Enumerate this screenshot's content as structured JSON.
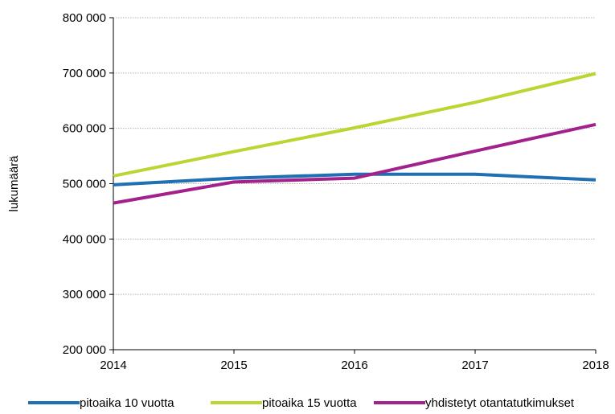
{
  "chart_data": {
    "type": "line",
    "title": "",
    "xlabel": "",
    "ylabel": "lukumäärä",
    "x": [
      "2014",
      "2015",
      "2016",
      "2017",
      "2018"
    ],
    "ylim": [
      200000,
      800000
    ],
    "y_ticks": [
      200000,
      300000,
      400000,
      500000,
      600000,
      700000,
      800000
    ],
    "y_tick_labels": [
      "200 000",
      "300 000",
      "400 000",
      "500 000",
      "600 000",
      "700 000",
      "800 000"
    ],
    "grid": true,
    "legend_position": "bottom",
    "series": [
      {
        "name": "pitoaika 10 vuotta",
        "color": "#1f6fb3",
        "values": [
          498000,
          510000,
          517000,
          517000,
          507000
        ]
      },
      {
        "name": "pitoaika 15 vuotta",
        "color": "#b9d632",
        "values": [
          514000,
          558000,
          601000,
          647000,
          699000
        ]
      },
      {
        "name": "yhdistetyt otantatutkimukset",
        "color": "#a3218b",
        "values": [
          465000,
          503000,
          510000,
          559000,
          607000
        ]
      }
    ]
  }
}
